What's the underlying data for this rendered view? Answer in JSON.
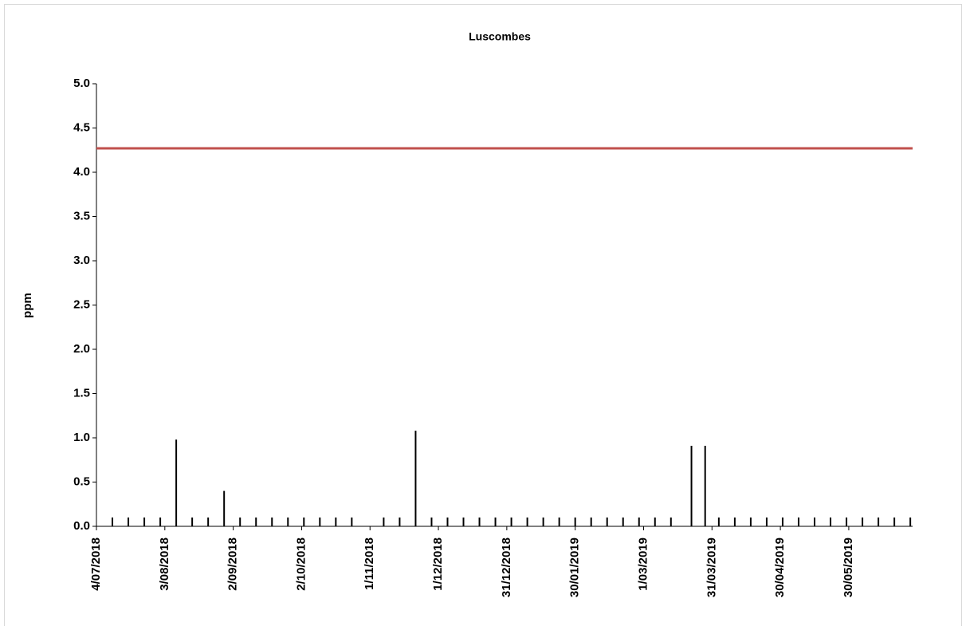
{
  "chart_data": {
    "type": "spike",
    "title": "Luscombes",
    "y_label": "ppm",
    "x": [
      "2018-07-11",
      "2018-07-18",
      "2018-07-25",
      "2018-08-01",
      "2018-08-08",
      "2018-08-15",
      "2018-08-22",
      "2018-08-29",
      "2018-09-05",
      "2018-09-12",
      "2018-09-19",
      "2018-09-26",
      "2018-10-03",
      "2018-10-10",
      "2018-10-17",
      "2018-10-24",
      "2018-11-07",
      "2018-11-14",
      "2018-11-21",
      "2018-11-28",
      "2018-12-05",
      "2018-12-12",
      "2018-12-19",
      "2018-12-26",
      "2019-01-02",
      "2019-01-09",
      "2019-01-16",
      "2019-01-23",
      "2019-01-30",
      "2019-02-06",
      "2019-02-13",
      "2019-02-20",
      "2019-02-27",
      "2019-03-06",
      "2019-03-13",
      "2019-03-22",
      "2019-03-28",
      "2019-04-03",
      "2019-04-10",
      "2019-04-17",
      "2019-04-24",
      "2019-05-01",
      "2019-05-08",
      "2019-05-15",
      "2019-05-22",
      "2019-05-29",
      "2019-06-05",
      "2019-06-12",
      "2019-06-19",
      "2019-06-26"
    ],
    "series": [
      {
        "color": "#000000",
        "values": [
          0.1,
          0.1,
          0.1,
          0.1,
          0.98,
          0.1,
          0.1,
          0.4,
          0.1,
          0.1,
          0.1,
          0.1,
          0.1,
          0.1,
          0.1,
          0.1,
          0.1,
          0.1,
          1.08,
          0.1,
          0.1,
          0.1,
          0.1,
          0.1,
          0.1,
          0.1,
          0.1,
          0.1,
          0.1,
          0.1,
          0.1,
          0.1,
          0.1,
          0.1,
          0.1,
          0.91,
          0.91,
          0.1,
          0.1,
          0.1,
          0.1,
          0.1,
          0.1,
          0.1,
          0.1,
          0.1,
          0.1,
          0.1,
          0.1,
          0.1
        ]
      }
    ],
    "reference_line": {
      "value": 4.27,
      "color": "#c0504d"
    },
    "xlim": [
      "2018-07-04",
      "2019-06-27"
    ],
    "xticks": [
      {
        "value": "2018-07-04",
        "label": "4/07/2018"
      },
      {
        "value": "2018-08-03",
        "label": "3/08/2018"
      },
      {
        "value": "2018-09-02",
        "label": "2/09/2018"
      },
      {
        "value": "2018-10-02",
        "label": "2/10/2018"
      },
      {
        "value": "2018-11-01",
        "label": "1/11/2018"
      },
      {
        "value": "2018-12-01",
        "label": "1/12/2018"
      },
      {
        "value": "2018-12-31",
        "label": "31/12/2018"
      },
      {
        "value": "2019-01-30",
        "label": "30/01/2019"
      },
      {
        "value": "2019-03-01",
        "label": "1/03/2019"
      },
      {
        "value": "2019-03-31",
        "label": "31/03/2019"
      },
      {
        "value": "2019-04-30",
        "label": "30/04/2019"
      },
      {
        "value": "2019-05-30",
        "label": "30/05/2019"
      }
    ],
    "ylim": [
      0,
      5
    ],
    "yticks": [
      {
        "value": 0,
        "label": "0.0"
      },
      0.5,
      {
        "value": 1,
        "label": "1.0"
      },
      1.5,
      {
        "value": 2,
        "label": "2.0"
      },
      2.5,
      {
        "value": 3,
        "label": "3.0"
      },
      3.5,
      {
        "value": 4,
        "label": "4.0"
      },
      4.5,
      {
        "value": 5,
        "label": "5.0"
      }
    ]
  }
}
